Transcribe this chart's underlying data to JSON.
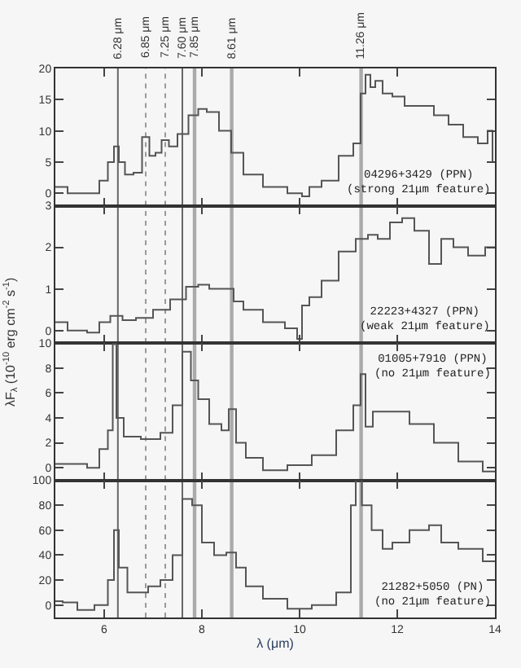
{
  "chart_data": [
    {
      "type": "step",
      "xlim": [
        5,
        14
      ],
      "ylim": [
        -2,
        20
      ],
      "yticks": [
        0,
        5,
        10,
        15,
        20
      ],
      "xticks": [
        6,
        8,
        10,
        12,
        14
      ],
      "tick_labels": "y",
      "grid": false,
      "x": [
        5.0,
        5.5,
        5.8,
        6.0,
        6.15,
        6.25,
        6.35,
        6.5,
        6.7,
        6.85,
        7.0,
        7.1,
        7.25,
        7.4,
        7.6,
        7.85,
        8.0,
        8.2,
        8.5,
        8.7,
        9.0,
        9.5,
        10.0,
        10.1,
        10.3,
        10.6,
        11.0,
        11.2,
        11.3,
        11.4,
        11.5,
        11.6,
        11.8,
        12.0,
        12.3,
        12.6,
        12.9,
        13.2,
        13.5,
        13.8,
        13.9,
        14.0
      ],
      "series": [
        {
          "color": "#555555",
          "values": [
            1,
            0,
            0,
            2,
            5,
            7.5,
            5,
            3,
            3.3,
            9,
            6,
            6.5,
            8.5,
            7.5,
            9.5,
            12.5,
            13.5,
            13,
            10,
            6.5,
            3,
            1,
            0,
            -0.5,
            1,
            2,
            6,
            8,
            16,
            19,
            17,
            18,
            16,
            15.5,
            14,
            14,
            12.5,
            11,
            9,
            8,
            10,
            5
          ]
        }
      ],
      "ref_lines": [
        {
          "axis": "x",
          "value": 6.28,
          "label": "6.28 μm",
          "color": "#666666",
          "line_style": "solid"
        },
        {
          "axis": "x",
          "value": 6.85,
          "label": "6.85 μm",
          "color": "#999999",
          "line_style": "dotted"
        },
        {
          "axis": "x",
          "value": 7.25,
          "label": "7.25 μm",
          "color": "#999999",
          "line_style": "dotted"
        },
        {
          "axis": "x",
          "value": 7.6,
          "label": "7.60 μm",
          "color": "#666666",
          "line_style": "solid"
        },
        {
          "axis": "x",
          "value": 7.85,
          "label": "7.85 μm",
          "color": "#aaaaaa",
          "line_style": "solid"
        },
        {
          "axis": "x",
          "value": 8.61,
          "label": "8.61 μm",
          "color": "#aaaaaa",
          "line_style": "solid"
        },
        {
          "axis": "x",
          "value": 11.26,
          "label": "11.26 μm",
          "color": "#aaaaaa",
          "line_style": "solid"
        }
      ],
      "annotations": [
        "04296+3429 (PPN)\n(strong 21μm feature)"
      ]
    },
    {
      "type": "step",
      "xlim": [
        5,
        14
      ],
      "ylim": [
        -0.3,
        3
      ],
      "yticks": [
        0,
        1,
        2,
        3
      ],
      "xticks": [
        6,
        8,
        10,
        12,
        14
      ],
      "tick_labels": "y",
      "grid": false,
      "ylabel": "λF$_{λ}$ (10$^{-10}$ erg cm$^{-2}$ s$^{-1}$)",
      "x": [
        5.0,
        5.5,
        5.8,
        6.0,
        6.25,
        6.5,
        6.8,
        7.2,
        7.5,
        7.85,
        8.0,
        8.3,
        8.6,
        8.7,
        9.0,
        9.5,
        9.9,
        10.0,
        10.1,
        10.3,
        10.6,
        11.0,
        11.3,
        11.5,
        11.7,
        12.0,
        12.2,
        12.5,
        12.8,
        13.0,
        13.3,
        13.6,
        14.0
      ],
      "series": [
        {
          "color": "#555555",
          "values": [
            0.2,
            0.0,
            -0.05,
            0.2,
            0.35,
            0.25,
            0.3,
            0.5,
            0.75,
            1.05,
            1.1,
            1.0,
            1.0,
            0.7,
            0.5,
            0.2,
            0.05,
            -0.2,
            0.6,
            0.8,
            1.2,
            1.9,
            2.2,
            2.3,
            2.2,
            2.6,
            2.7,
            2.4,
            1.6,
            2.2,
            2.0,
            1.8,
            2.0
          ]
        }
      ],
      "ref_lines": [
        {
          "axis": "x",
          "value": 6.28,
          "color": "#666666",
          "line_style": "solid"
        },
        {
          "axis": "x",
          "value": 6.85,
          "color": "#999999",
          "line_style": "dotted"
        },
        {
          "axis": "x",
          "value": 7.25,
          "color": "#999999",
          "line_style": "dotted"
        },
        {
          "axis": "x",
          "value": 7.6,
          "color": "#666666",
          "line_style": "solid"
        },
        {
          "axis": "x",
          "value": 7.85,
          "color": "#aaaaaa",
          "line_style": "solid"
        },
        {
          "axis": "x",
          "value": 8.61,
          "color": "#aaaaaa",
          "line_style": "solid"
        },
        {
          "axis": "x",
          "value": 11.26,
          "color": "#aaaaaa",
          "line_style": "solid"
        }
      ],
      "annotations": [
        "22223+4327 (PPN)\n(weak 21μm feature)"
      ]
    },
    {
      "type": "step",
      "xlim": [
        5,
        14
      ],
      "ylim": [
        -1,
        10
      ],
      "yticks": [
        0,
        2,
        4,
        6,
        8,
        10
      ],
      "xticks": [
        6,
        8,
        10,
        12,
        14
      ],
      "tick_labels": "y",
      "grid": false,
      "x": [
        5.0,
        5.5,
        5.8,
        6.0,
        6.15,
        6.2,
        6.3,
        6.5,
        7.0,
        7.3,
        7.5,
        7.7,
        7.85,
        8.0,
        8.3,
        8.5,
        8.6,
        8.8,
        9.0,
        9.5,
        10.0,
        10.5,
        11.0,
        11.2,
        11.3,
        11.4,
        11.6,
        12.0,
        12.5,
        13.0,
        13.5,
        14.0
      ],
      "series": [
        {
          "color": "#555555",
          "values": [
            0.3,
            0.3,
            0.0,
            1.5,
            3,
            9.9,
            4,
            2.5,
            2.3,
            2.8,
            5,
            9.3,
            7,
            5.5,
            3.5,
            3.0,
            4.7,
            2,
            0.8,
            -0.2,
            0.2,
            1.0,
            3,
            5,
            7.5,
            3.3,
            4.5,
            4.5,
            3.5,
            2,
            0.5,
            -0.3
          ]
        }
      ],
      "ref_lines": [
        {
          "axis": "x",
          "value": 6.28,
          "color": "#666666",
          "line_style": "solid"
        },
        {
          "axis": "x",
          "value": 6.85,
          "color": "#999999",
          "line_style": "dotted"
        },
        {
          "axis": "x",
          "value": 7.25,
          "color": "#999999",
          "line_style": "dotted"
        },
        {
          "axis": "x",
          "value": 7.6,
          "color": "#666666",
          "line_style": "solid"
        },
        {
          "axis": "x",
          "value": 7.85,
          "color": "#aaaaaa",
          "line_style": "solid"
        },
        {
          "axis": "x",
          "value": 8.61,
          "color": "#aaaaaa",
          "line_style": "solid"
        },
        {
          "axis": "x",
          "value": 11.26,
          "color": "#aaaaaa",
          "line_style": "solid"
        }
      ],
      "annotations": [
        "01005+7910 (PPN)\n(no 21μm feature)"
      ]
    },
    {
      "type": "step",
      "xlim": [
        5,
        14
      ],
      "ylim": [
        -10,
        100
      ],
      "yticks": [
        0,
        20,
        40,
        60,
        80,
        100
      ],
      "xticks": [
        6,
        8,
        10,
        12,
        14
      ],
      "grid": false,
      "xlabel": "λ (μm)",
      "x": [
        5.0,
        5.3,
        5.6,
        6.0,
        6.15,
        6.25,
        6.35,
        6.6,
        6.8,
        7.0,
        7.3,
        7.5,
        7.7,
        7.9,
        8.1,
        8.4,
        8.6,
        8.8,
        9.0,
        9.5,
        10.0,
        10.5,
        11.0,
        11.1,
        11.2,
        11.35,
        11.6,
        11.8,
        12.0,
        12.5,
        12.8,
        13.0,
        13.5,
        14.0
      ],
      "series": [
        {
          "color": "#555555",
          "values": [
            3,
            2,
            -4,
            0,
            20,
            60,
            30,
            10,
            10,
            15,
            20,
            40,
            85,
            80,
            50,
            40,
            42,
            30,
            15,
            5,
            -3,
            0,
            10,
            80,
            100,
            80,
            60,
            45,
            50,
            60,
            64,
            50,
            45,
            35
          ]
        }
      ],
      "ref_lines": [
        {
          "axis": "x",
          "value": 6.28,
          "color": "#666666",
          "line_style": "solid"
        },
        {
          "axis": "x",
          "value": 6.85,
          "color": "#999999",
          "line_style": "dotted"
        },
        {
          "axis": "x",
          "value": 7.25,
          "color": "#999999",
          "line_style": "dotted"
        },
        {
          "axis": "x",
          "value": 7.6,
          "color": "#666666",
          "line_style": "solid"
        },
        {
          "axis": "x",
          "value": 7.85,
          "color": "#aaaaaa",
          "line_style": "solid"
        },
        {
          "axis": "x",
          "value": 8.61,
          "color": "#aaaaaa",
          "line_style": "solid"
        },
        {
          "axis": "x",
          "value": 11.26,
          "color": "#aaaaaa",
          "line_style": "solid"
        }
      ],
      "annotations": [
        "21282+5050 (PN)\n(no 21μm feature)"
      ]
    }
  ]
}
